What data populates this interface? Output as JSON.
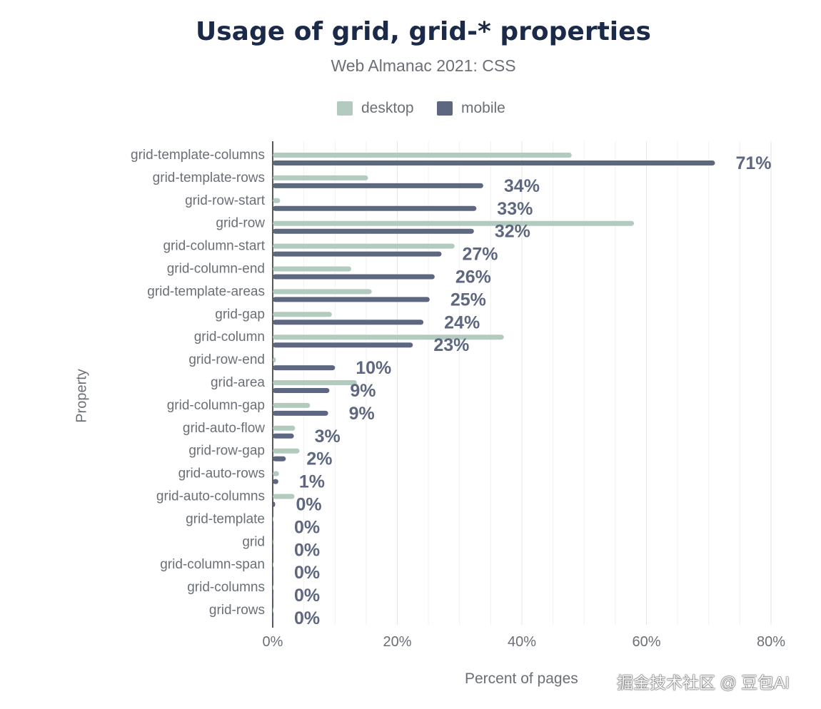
{
  "chart_data": {
    "type": "bar",
    "orientation": "horizontal",
    "title": "Usage of grid, grid-* properties",
    "subtitle": "Web Almanac 2021: CSS",
    "xlabel": "Percent of pages",
    "ylabel": "Property",
    "xlim": [
      0,
      80
    ],
    "x_ticks": [
      "0%",
      "20%",
      "40%",
      "60%",
      "80%"
    ],
    "x_tick_values": [
      0,
      20,
      40,
      60,
      80
    ],
    "grid": true,
    "legend": "top-center",
    "categories": [
      "grid-template-columns",
      "grid-template-rows",
      "grid-row-start",
      "grid-row",
      "grid-column-start",
      "grid-column-end",
      "grid-template-areas",
      "grid-gap",
      "grid-column",
      "grid-row-end",
      "grid-area",
      "grid-column-gap",
      "grid-auto-flow",
      "grid-row-gap",
      "grid-auto-rows",
      "grid-auto-columns",
      "grid-template",
      "grid",
      "grid-column-span",
      "grid-columns",
      "grid-rows"
    ],
    "series": [
      {
        "name": "desktop",
        "color": "#b3cbbf",
        "values": [
          48,
          15.3,
          1.2,
          58,
          29.2,
          12.6,
          15.9,
          9.5,
          37.1,
          0.5,
          13.5,
          6,
          3.6,
          4.3,
          1,
          3.5,
          0.1,
          0.2,
          0.1,
          0.1,
          0.1
        ]
      },
      {
        "name": "mobile",
        "color": "#5e6780",
        "values": [
          71,
          33.8,
          32.7,
          32.3,
          27.1,
          26,
          25.2,
          24.2,
          22.5,
          10,
          9.1,
          8.9,
          3.4,
          2.1,
          0.9,
          0.4,
          0.1,
          0.1,
          0.1,
          0.1,
          0.1
        ]
      }
    ],
    "data_labels": [
      "71%",
      "34%",
      "33%",
      "32%",
      "27%",
      "26%",
      "25%",
      "24%",
      "23%",
      "10%",
      "9%",
      "9%",
      "3%",
      "2%",
      "1%",
      "0%",
      "0%",
      "0%",
      "0%",
      "0%",
      "0%"
    ]
  },
  "watermark": "掘金技术社区 @ 豆包AI"
}
